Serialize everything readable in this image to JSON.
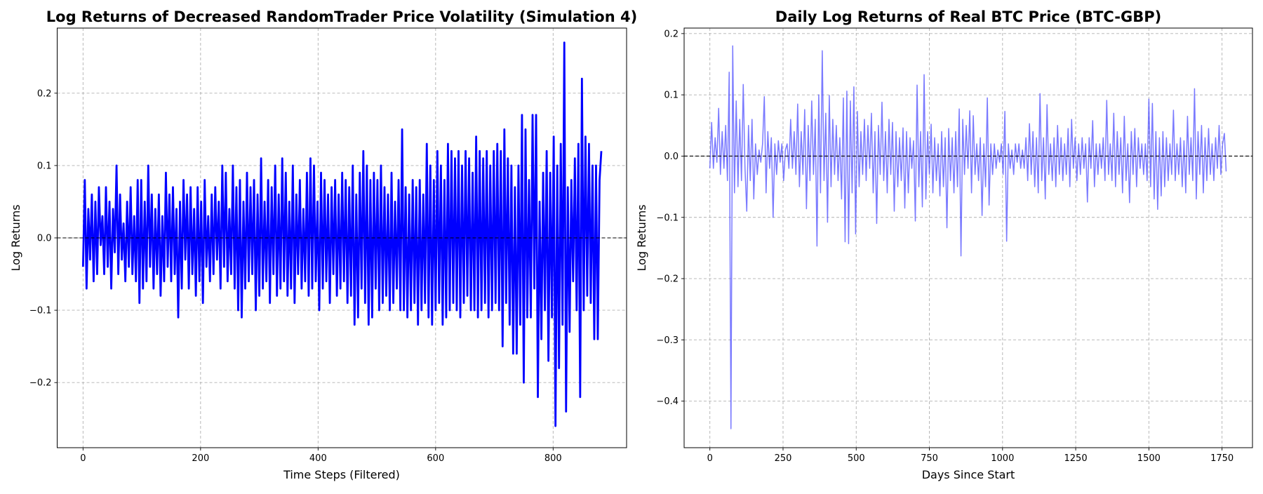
{
  "chart_data": [
    {
      "type": "line",
      "title": "Log Returns of Decreased RandomTrader Price Volatility (Simulation 4)",
      "xlabel": "Time Steps (Filtered)",
      "ylabel": "Log Returns",
      "xlim": [
        -44,
        925
      ],
      "ylim": [
        -0.29,
        0.29
      ],
      "x_ticks": [
        0,
        200,
        400,
        600,
        800
      ],
      "x_tick_labels": [
        "0",
        "200",
        "400",
        "600",
        "800"
      ],
      "y_ticks": [
        -0.2,
        -0.1,
        0.0,
        0.1,
        0.2
      ],
      "y_tick_labels": [
        "−0.2",
        "−0.1",
        "0.0",
        "0.1",
        "0.2"
      ],
      "grid": true,
      "reference_line": {
        "y": 0.0,
        "style": "dashed",
        "color": "#000000"
      },
      "series": [
        {
          "color": "#0000ff",
          "x_range": [
            0,
            882
          ],
          "values": [
            -0.04,
            0.08,
            -0.07,
            0.04,
            -0.03,
            0.06,
            -0.06,
            0.05,
            -0.05,
            0.07,
            -0.01,
            0.03,
            -0.05,
            0.07,
            -0.04,
            0.05,
            -0.07,
            0.04,
            -0.02,
            0.1,
            -0.05,
            0.06,
            -0.03,
            0.02,
            -0.06,
            0.05,
            -0.04,
            0.07,
            -0.05,
            0.03,
            -0.06,
            0.08,
            -0.09,
            0.08,
            -0.07,
            0.05,
            -0.06,
            0.1,
            -0.04,
            0.06,
            -0.07,
            0.04,
            -0.05,
            0.06,
            -0.08,
            0.03,
            -0.06,
            0.09,
            -0.04,
            0.06,
            -0.06,
            0.07,
            -0.05,
            0.04,
            -0.11,
            0.05,
            -0.07,
            0.08,
            -0.03,
            0.06,
            -0.07,
            0.07,
            -0.05,
            0.04,
            -0.08,
            0.07,
            -0.06,
            0.05,
            -0.09,
            0.08,
            -0.04,
            0.03,
            -0.06,
            0.06,
            -0.05,
            0.07,
            -0.03,
            0.05,
            -0.07,
            0.1,
            -0.04,
            0.09,
            -0.06,
            0.04,
            -0.05,
            0.1,
            -0.07,
            0.07,
            -0.1,
            0.08,
            -0.11,
            0.05,
            -0.07,
            0.09,
            -0.06,
            0.07,
            -0.05,
            0.08,
            -0.1,
            0.06,
            -0.08,
            0.11,
            -0.07,
            0.05,
            -0.06,
            0.08,
            -0.09,
            0.07,
            -0.05,
            0.1,
            -0.08,
            0.06,
            -0.07,
            0.11,
            -0.06,
            0.09,
            -0.08,
            0.05,
            -0.07,
            0.1,
            -0.09,
            0.06,
            -0.05,
            0.08,
            -0.07,
            0.04,
            -0.06,
            0.09,
            -0.08,
            0.11,
            -0.07,
            0.1,
            -0.06,
            0.05,
            -0.1,
            0.09,
            -0.07,
            0.08,
            -0.06,
            0.06,
            -0.09,
            0.07,
            -0.05,
            0.08,
            -0.08,
            0.06,
            -0.07,
            0.09,
            -0.06,
            0.08,
            -0.09,
            0.07,
            -0.08,
            0.1,
            -0.12,
            0.06,
            -0.11,
            0.09,
            -0.07,
            0.12,
            -0.09,
            0.1,
            -0.12,
            0.08,
            -0.11,
            0.09,
            -0.07,
            0.08,
            -0.1,
            0.1,
            -0.09,
            0.07,
            -0.08,
            0.06,
            -0.1,
            0.09,
            -0.09,
            0.05,
            -0.07,
            0.08,
            -0.1,
            0.15,
            -0.1,
            0.07,
            -0.11,
            0.06,
            -0.1,
            0.08,
            -0.09,
            0.07,
            -0.12,
            0.08,
            -0.1,
            0.06,
            -0.09,
            0.13,
            -0.11,
            0.1,
            -0.12,
            0.08,
            -0.1,
            0.12,
            -0.09,
            0.1,
            -0.12,
            0.08,
            -0.11,
            0.13,
            -0.1,
            0.12,
            -0.09,
            0.11,
            -0.1,
            0.12,
            -0.11,
            0.1,
            -0.09,
            0.12,
            -0.08,
            0.11,
            -0.1,
            0.09,
            -0.1,
            0.14,
            -0.11,
            0.12,
            -0.1,
            0.11,
            -0.09,
            0.12,
            -0.11,
            0.1,
            -0.1,
            0.12,
            -0.09,
            0.13,
            -0.1,
            0.12,
            -0.15,
            0.15,
            -0.09,
            0.11,
            -0.12,
            0.1,
            -0.16,
            0.07,
            -0.16,
            0.1,
            -0.12,
            0.17,
            -0.2,
            0.15,
            -0.11,
            0.08,
            -0.11,
            0.17,
            -0.07,
            0.17,
            -0.22,
            0.05,
            -0.14,
            0.09,
            -0.1,
            0.12,
            -0.17,
            0.09,
            -0.11,
            0.14,
            -0.26,
            0.1,
            -0.18,
            0.13,
            -0.12,
            0.27,
            -0.24,
            0.07,
            -0.13,
            0.08,
            -0.06,
            0.11,
            -0.1,
            0.13,
            -0.22,
            0.22,
            -0.1,
            0.14,
            -0.08,
            0.13,
            -0.09,
            0.1,
            -0.14,
            0.1,
            -0.14,
            0.08,
            0.12
          ]
        }
      ]
    },
    {
      "type": "line",
      "title": "Daily Log Returns of Real BTC Price (BTC-GBP)",
      "xlabel": "Days Since Start",
      "ylabel": "Log Returns",
      "xlim": [
        -88,
        1854
      ],
      "ylim": [
        -0.476,
        0.209
      ],
      "x_ticks": [
        0,
        250,
        500,
        750,
        1000,
        1250,
        1500,
        1750
      ],
      "x_tick_labels": [
        "0",
        "250",
        "500",
        "750",
        "1000",
        "1250",
        "1500",
        "1750"
      ],
      "y_ticks": [
        -0.4,
        -0.3,
        -0.2,
        -0.1,
        0.0,
        0.1,
        0.2
      ],
      "y_tick_labels": [
        "−0.4",
        "−0.3",
        "−0.2",
        "−0.1",
        "0.0",
        "0.1",
        "0.2"
      ],
      "grid": true,
      "reference_line": {
        "y": 0.0,
        "style": "dashed",
        "color": "#000000"
      },
      "series": [
        {
          "color": "#4d4dff",
          "x_range": [
            0,
            1764
          ],
          "values": [
            -0.02,
            0.055,
            -0.02,
            0.03,
            -0.01,
            0.078,
            -0.03,
            0.04,
            -0.02,
            0.05,
            -0.04,
            0.137,
            -0.445,
            0.18,
            -0.06,
            0.09,
            -0.05,
            0.06,
            -0.04,
            0.117,
            -0.02,
            -0.09,
            0.05,
            -0.04,
            0.06,
            -0.07,
            0.02,
            -0.03,
            0.01,
            -0.01,
            0.02,
            0.097,
            -0.06,
            0.04,
            -0.02,
            0.03,
            -0.1,
            0.02,
            -0.03,
            0.025,
            -0.01,
            0.02,
            -0.04,
            0.01,
            0.02,
            -0.02,
            0.06,
            -0.02,
            0.04,
            -0.03,
            0.085,
            -0.05,
            0.04,
            -0.03,
            0.076,
            -0.086,
            0.05,
            -0.04,
            0.09,
            -0.03,
            0.06,
            -0.147,
            0.1,
            -0.06,
            0.172,
            -0.04,
            0.07,
            -0.108,
            0.099,
            -0.05,
            0.06,
            -0.03,
            0.05,
            -0.04,
            0.03,
            -0.07,
            0.095,
            -0.14,
            0.106,
            -0.143,
            0.09,
            -0.06,
            0.113,
            -0.127,
            0.073,
            -0.05,
            0.04,
            -0.03,
            0.06,
            -0.04,
            0.05,
            -0.02,
            0.07,
            -0.06,
            0.04,
            -0.11,
            0.05,
            -0.03,
            0.088,
            -0.04,
            0.04,
            -0.06,
            0.06,
            -0.03,
            0.055,
            -0.09,
            0.04,
            -0.05,
            0.03,
            -0.04,
            0.046,
            -0.085,
            0.04,
            -0.06,
            0.03,
            -0.02,
            0.025,
            -0.106,
            0.116,
            -0.05,
            0.04,
            -0.083,
            0.133,
            -0.07,
            0.04,
            -0.03,
            0.052,
            -0.06,
            0.03,
            -0.04,
            0.02,
            -0.065,
            0.04,
            -0.05,
            0.03,
            -0.117,
            0.045,
            -0.04,
            0.03,
            -0.06,
            0.04,
            -0.05,
            0.077,
            -0.163,
            0.06,
            -0.03,
            0.05,
            -0.02,
            0.074,
            -0.06,
            0.066,
            -0.03,
            0.02,
            -0.04,
            0.03,
            -0.097,
            0.02,
            -0.05,
            0.095,
            -0.08,
            0.02,
            -0.03,
            0.02,
            -0.02,
            0.01,
            -0.01,
            0.02,
            -0.03,
            0.073,
            -0.139,
            0.02,
            -0.02,
            0.01,
            -0.03,
            0.02,
            -0.01,
            0.02,
            -0.02,
            0.01,
            -0.02,
            0.03,
            -0.04,
            0.053,
            -0.03,
            0.04,
            -0.05,
            0.03,
            -0.06,
            0.102,
            -0.04,
            0.03,
            -0.07,
            0.084,
            -0.03,
            0.02,
            -0.04,
            0.03,
            -0.05,
            0.05,
            -0.03,
            0.03,
            -0.04,
            0.02,
            -0.03,
            0.045,
            -0.05,
            0.06,
            -0.02,
            0.03,
            -0.04,
            0.02,
            -0.03,
            0.03,
            -0.02,
            0.02,
            -0.075,
            0.03,
            -0.02,
            0.058,
            -0.05,
            0.02,
            -0.03,
            0.02,
            -0.02,
            0.03,
            -0.04,
            0.091,
            -0.03,
            0.02,
            -0.04,
            0.07,
            -0.05,
            0.04,
            -0.03,
            0.03,
            -0.06,
            0.065,
            -0.04,
            0.02,
            -0.076,
            0.04,
            -0.03,
            0.045,
            -0.05,
            0.03,
            -0.02,
            0.02,
            -0.03,
            0.02,
            -0.04,
            0.093,
            -0.05,
            0.086,
            -0.07,
            0.04,
            -0.087,
            0.03,
            -0.065,
            0.04,
            -0.05,
            0.03,
            -0.04,
            0.02,
            -0.03,
            0.075,
            -0.04,
            0.02,
            -0.03,
            0.03,
            -0.05,
            0.025,
            -0.06,
            0.065,
            -0.03,
            0.03,
            -0.04,
            0.11,
            -0.07,
            0.04,
            -0.03,
            0.05,
            -0.06,
            0.03,
            -0.04,
            0.045,
            -0.03,
            0.02,
            -0.04,
            0.03,
            -0.02,
            0.05,
            -0.03,
            0.02,
            0.037,
            -0.025
          ]
        }
      ]
    }
  ]
}
